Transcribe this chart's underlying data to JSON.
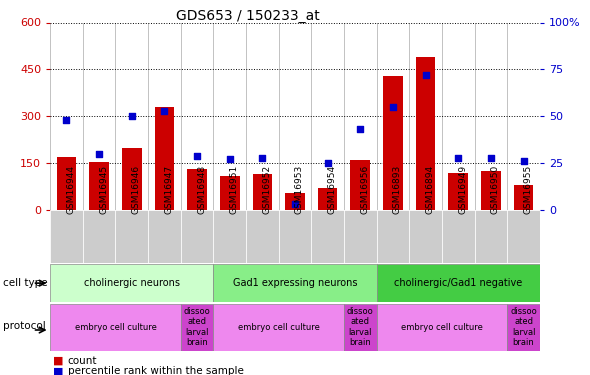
{
  "title": "GDS653 / 150233_at",
  "samples": [
    "GSM16944",
    "GSM16945",
    "GSM16946",
    "GSM16947",
    "GSM16948",
    "GSM16951",
    "GSM16952",
    "GSM16953",
    "GSM16954",
    "GSM16956",
    "GSM16893",
    "GSM16894",
    "GSM16949",
    "GSM16950",
    "GSM16955"
  ],
  "counts": [
    170,
    155,
    200,
    330,
    130,
    110,
    115,
    55,
    70,
    160,
    430,
    490,
    120,
    125,
    80
  ],
  "percentiles": [
    48,
    30,
    50,
    53,
    29,
    27,
    28,
    3,
    25,
    43,
    55,
    72,
    28,
    28,
    26
  ],
  "left_ylim": [
    0,
    600
  ],
  "right_ylim": [
    0,
    100
  ],
  "left_yticks": [
    0,
    150,
    300,
    450,
    600
  ],
  "right_yticks": [
    0,
    25,
    50,
    75,
    100
  ],
  "cell_type_groups": [
    {
      "label": "cholinergic neurons",
      "start": 0,
      "end": 5,
      "color": "#ccffcc"
    },
    {
      "label": "Gad1 expressing neurons",
      "start": 5,
      "end": 10,
      "color": "#88ee88"
    },
    {
      "label": "cholinergic/Gad1 negative",
      "start": 10,
      "end": 15,
      "color": "#44cc44"
    }
  ],
  "protocol_groups": [
    {
      "label": "embryo cell culture",
      "start": 0,
      "end": 4,
      "color": "#ee88ee"
    },
    {
      "label": "dissoo\nated\nlarval\nbrain",
      "start": 4,
      "end": 5,
      "color": "#cc44cc"
    },
    {
      "label": "embryo cell culture",
      "start": 5,
      "end": 9,
      "color": "#ee88ee"
    },
    {
      "label": "dissoo\nated\nlarval\nbrain",
      "start": 9,
      "end": 10,
      "color": "#cc44cc"
    },
    {
      "label": "embryo cell culture",
      "start": 10,
      "end": 14,
      "color": "#ee88ee"
    },
    {
      "label": "dissoo\nated\nlarval\nbrain",
      "start": 14,
      "end": 15,
      "color": "#cc44cc"
    }
  ],
  "bar_color": "#cc0000",
  "dot_color": "#0000cc",
  "left_label_color": "#cc0000",
  "right_label_color": "#0000cc",
  "bg_color": "#ffffff",
  "plot_bg_color": "#ffffff",
  "tick_bg_color": "#cccccc"
}
